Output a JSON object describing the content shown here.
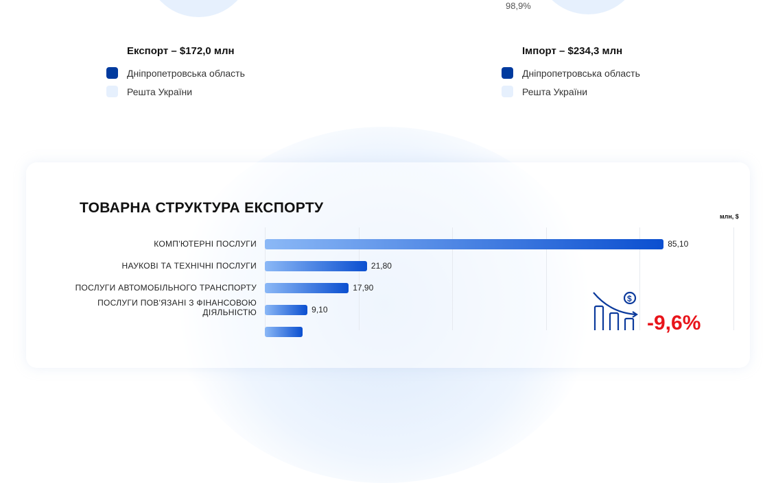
{
  "export_legend": {
    "title": "Експорт – $172,0 млн",
    "items": [
      {
        "label": "Дніпропетровська область",
        "color": "#003a9e"
      },
      {
        "label": "Решта України",
        "color": "#e6f0fd"
      }
    ]
  },
  "import_legend": {
    "title": "Імпорт – $234,3 млн",
    "items": [
      {
        "label": "Дніпропетровська область",
        "color": "#003a9e"
      },
      {
        "label": "Решта України",
        "color": "#e6f0fd"
      }
    ],
    "pct_label": "98,9%"
  },
  "chart_data": {
    "type": "bar",
    "orientation": "horizontal",
    "title": "ТОВАРНА СТРУКТУРА ЕКСПОРТУ",
    "unit": "млн, $",
    "xlim": [
      0,
      100
    ],
    "grid": true,
    "categories": [
      "КОМП'ЮТЕРНІ ПОСЛУГИ",
      "НАУКОВІ ТА ТЕХНІЧНІ ПОСЛУГИ",
      "ПОСЛУГИ АВТОМОБІЛЬНОГО ТРАНСПОРТУ",
      "ПОСЛУГИ ПОВ'ЯЗАНІ З ФІНАНСОВОЮ ДІЯЛЬНІСТЮ",
      ""
    ],
    "values": [
      85.1,
      21.8,
      17.9,
      9.1,
      8.0
    ],
    "labels": [
      "85,10",
      "21,80",
      "17,90",
      "9,10",
      ""
    ]
  },
  "change": {
    "value": "-9,6%",
    "icon": "declining-chart-dollar-icon"
  }
}
